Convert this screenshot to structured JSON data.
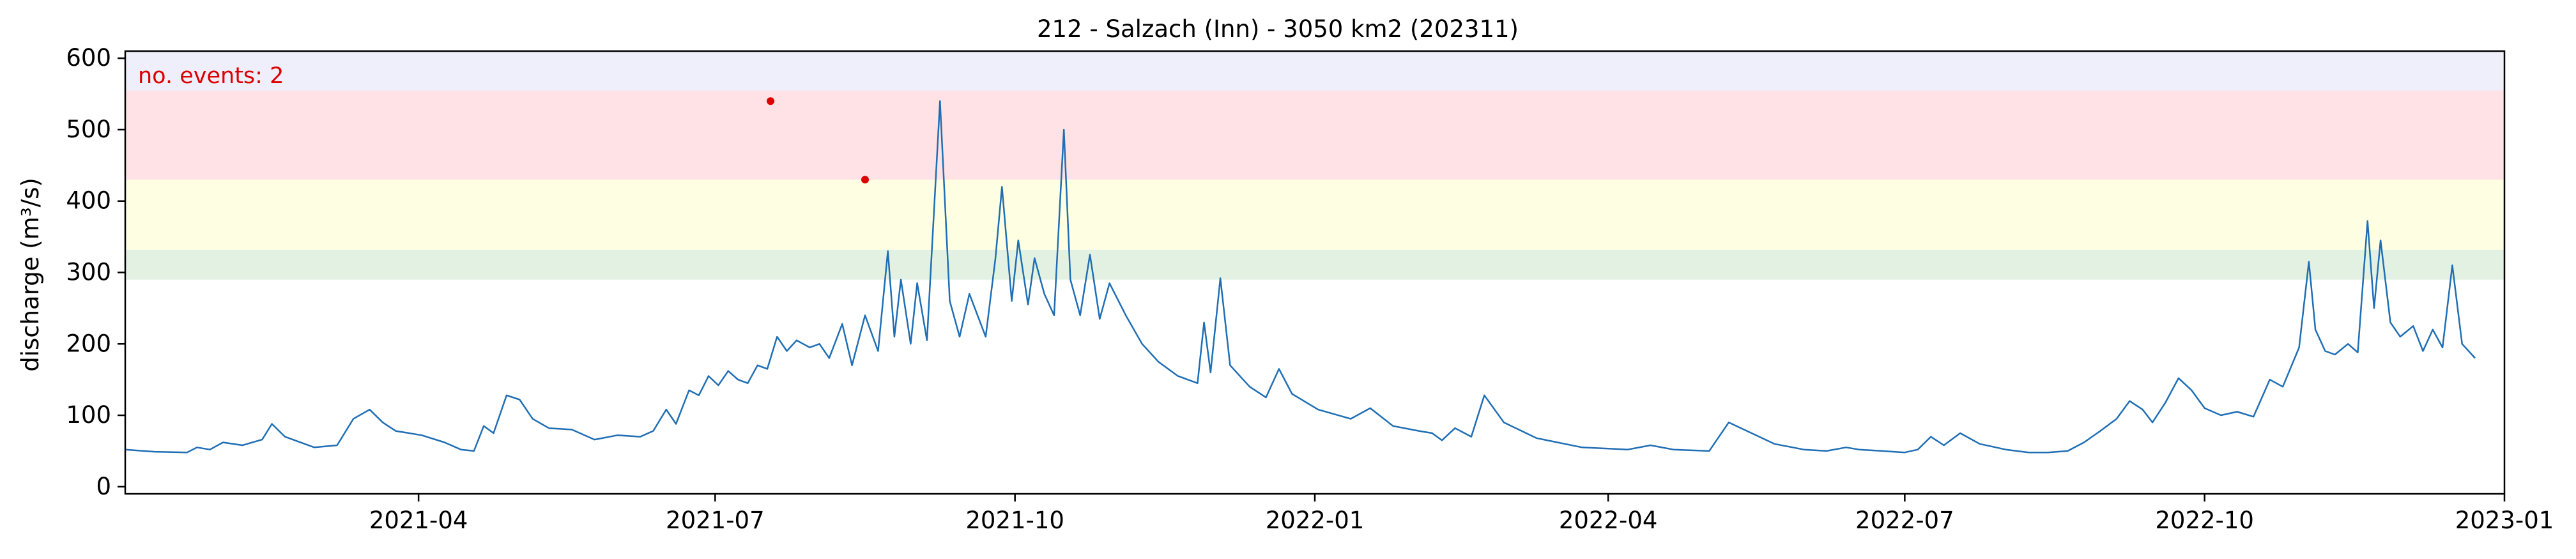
{
  "chart_data": {
    "type": "line",
    "title": "212 - Salzach (Inn) - 3050 km2 (202311)",
    "xlabel": "",
    "ylabel": "discharge (m³/s)",
    "xlim": [
      "2021-01-01",
      "2023-01-01"
    ],
    "ylim": [
      -10,
      610
    ],
    "x_ticks": [
      "2021-04",
      "2021-07",
      "2021-10",
      "2022-01",
      "2022-04",
      "2022-07",
      "2022-10",
      "2023-01"
    ],
    "y_ticks": [
      0,
      100,
      200,
      300,
      400,
      500,
      600
    ],
    "annotation": "no. events: 2",
    "annotation_color": "#dd0000",
    "line_color": "#1f6eb4",
    "event_marker_color": "#dd0000",
    "threshold_bands": [
      {
        "from": 290,
        "to": 332,
        "color": "#e3f1e3"
      },
      {
        "from": 332,
        "to": 430,
        "color": "#fefee2"
      },
      {
        "from": 430,
        "to": 555,
        "color": "#fee2e5"
      },
      {
        "from": 555,
        "to": 610,
        "color": "#efeffb"
      }
    ],
    "events": [
      {
        "x": "2021-07-18",
        "y": 540
      },
      {
        "x": "2021-08-16",
        "y": 430
      }
    ],
    "series": [
      {
        "points": [
          [
            "2021-01-01",
            52
          ],
          [
            "2021-01-10",
            49
          ],
          [
            "2021-01-20",
            48
          ],
          [
            "2021-01-23",
            55
          ],
          [
            "2021-01-27",
            52
          ],
          [
            "2021-01-31",
            62
          ],
          [
            "2021-02-06",
            58
          ],
          [
            "2021-02-12",
            66
          ],
          [
            "2021-02-15",
            88
          ],
          [
            "2021-02-19",
            70
          ],
          [
            "2021-02-28",
            55
          ],
          [
            "2021-03-07",
            58
          ],
          [
            "2021-03-12",
            95
          ],
          [
            "2021-03-17",
            108
          ],
          [
            "2021-03-21",
            90
          ],
          [
            "2021-03-25",
            78
          ],
          [
            "2021-04-02",
            72
          ],
          [
            "2021-04-09",
            62
          ],
          [
            "2021-04-14",
            52
          ],
          [
            "2021-04-18",
            50
          ],
          [
            "2021-04-21",
            85
          ],
          [
            "2021-04-24",
            75
          ],
          [
            "2021-04-28",
            128
          ],
          [
            "2021-05-02",
            122
          ],
          [
            "2021-05-06",
            95
          ],
          [
            "2021-05-11",
            82
          ],
          [
            "2021-05-18",
            80
          ],
          [
            "2021-05-25",
            66
          ],
          [
            "2021-06-01",
            72
          ],
          [
            "2021-06-08",
            70
          ],
          [
            "2021-06-12",
            78
          ],
          [
            "2021-06-16",
            108
          ],
          [
            "2021-06-19",
            88
          ],
          [
            "2021-06-23",
            135
          ],
          [
            "2021-06-26",
            128
          ],
          [
            "2021-06-29",
            155
          ],
          [
            "2021-07-02",
            142
          ],
          [
            "2021-07-05",
            162
          ],
          [
            "2021-07-08",
            150
          ],
          [
            "2021-07-11",
            145
          ],
          [
            "2021-07-14",
            170
          ],
          [
            "2021-07-17",
            165
          ],
          [
            "2021-07-20",
            210
          ],
          [
            "2021-07-23",
            190
          ],
          [
            "2021-07-26",
            205
          ],
          [
            "2021-07-30",
            195
          ],
          [
            "2021-08-02",
            200
          ],
          [
            "2021-08-05",
            180
          ],
          [
            "2021-08-09",
            228
          ],
          [
            "2021-08-12",
            170
          ],
          [
            "2021-08-16",
            240
          ],
          [
            "2021-08-20",
            190
          ],
          [
            "2021-08-23",
            330
          ],
          [
            "2021-08-25",
            210
          ],
          [
            "2021-08-27",
            290
          ],
          [
            "2021-08-30",
            200
          ],
          [
            "2021-09-01",
            285
          ],
          [
            "2021-09-04",
            205
          ],
          [
            "2021-09-08",
            540
          ],
          [
            "2021-09-11",
            260
          ],
          [
            "2021-09-14",
            210
          ],
          [
            "2021-09-17",
            270
          ],
          [
            "2021-09-22",
            210
          ],
          [
            "2021-09-25",
            320
          ],
          [
            "2021-09-27",
            420
          ],
          [
            "2021-09-30",
            260
          ],
          [
            "2021-10-02",
            345
          ],
          [
            "2021-10-05",
            255
          ],
          [
            "2021-10-07",
            320
          ],
          [
            "2021-10-10",
            270
          ],
          [
            "2021-10-13",
            240
          ],
          [
            "2021-10-16",
            500
          ],
          [
            "2021-10-18",
            290
          ],
          [
            "2021-10-21",
            240
          ],
          [
            "2021-10-24",
            325
          ],
          [
            "2021-10-27",
            235
          ],
          [
            "2021-10-30",
            285
          ],
          [
            "2021-11-04",
            240
          ],
          [
            "2021-11-09",
            200
          ],
          [
            "2021-11-14",
            175
          ],
          [
            "2021-11-20",
            155
          ],
          [
            "2021-11-26",
            145
          ],
          [
            "2021-11-28",
            230
          ],
          [
            "2021-11-30",
            160
          ],
          [
            "2021-12-03",
            292
          ],
          [
            "2021-12-06",
            170
          ],
          [
            "2021-12-12",
            140
          ],
          [
            "2021-12-17",
            125
          ],
          [
            "2021-12-21",
            165
          ],
          [
            "2021-12-25",
            130
          ],
          [
            "2022-01-02",
            108
          ],
          [
            "2022-01-12",
            95
          ],
          [
            "2022-01-18",
            110
          ],
          [
            "2022-01-25",
            85
          ],
          [
            "2022-02-02",
            78
          ],
          [
            "2022-02-06",
            75
          ],
          [
            "2022-02-09",
            65
          ],
          [
            "2022-02-13",
            82
          ],
          [
            "2022-02-18",
            70
          ],
          [
            "2022-02-22",
            128
          ],
          [
            "2022-02-28",
            90
          ],
          [
            "2022-03-10",
            68
          ],
          [
            "2022-03-24",
            55
          ],
          [
            "2022-04-07",
            52
          ],
          [
            "2022-04-14",
            58
          ],
          [
            "2022-04-21",
            52
          ],
          [
            "2022-05-02",
            50
          ],
          [
            "2022-05-08",
            90
          ],
          [
            "2022-05-15",
            75
          ],
          [
            "2022-05-22",
            60
          ],
          [
            "2022-05-31",
            52
          ],
          [
            "2022-06-07",
            50
          ],
          [
            "2022-06-13",
            55
          ],
          [
            "2022-06-17",
            52
          ],
          [
            "2022-06-24",
            50
          ],
          [
            "2022-07-01",
            48
          ],
          [
            "2022-07-05",
            52
          ],
          [
            "2022-07-09",
            70
          ],
          [
            "2022-07-13",
            58
          ],
          [
            "2022-07-18",
            75
          ],
          [
            "2022-07-24",
            60
          ],
          [
            "2022-08-01",
            52
          ],
          [
            "2022-08-08",
            48
          ],
          [
            "2022-08-14",
            48
          ],
          [
            "2022-08-20",
            50
          ],
          [
            "2022-08-25",
            62
          ],
          [
            "2022-08-30",
            78
          ],
          [
            "2022-09-04",
            95
          ],
          [
            "2022-09-08",
            120
          ],
          [
            "2022-09-12",
            108
          ],
          [
            "2022-09-15",
            90
          ],
          [
            "2022-09-19",
            118
          ],
          [
            "2022-09-23",
            152
          ],
          [
            "2022-09-27",
            135
          ],
          [
            "2022-10-01",
            110
          ],
          [
            "2022-10-06",
            100
          ],
          [
            "2022-10-11",
            105
          ],
          [
            "2022-10-16",
            98
          ],
          [
            "2022-10-21",
            150
          ],
          [
            "2022-10-25",
            140
          ],
          [
            "2022-10-30",
            195
          ],
          [
            "2022-11-02",
            315
          ],
          [
            "2022-11-04",
            220
          ],
          [
            "2022-11-07",
            190
          ],
          [
            "2022-11-10",
            185
          ],
          [
            "2022-11-14",
            200
          ],
          [
            "2022-11-17",
            188
          ],
          [
            "2022-11-20",
            372
          ],
          [
            "2022-11-22",
            250
          ],
          [
            "2022-11-24",
            345
          ],
          [
            "2022-11-27",
            230
          ],
          [
            "2022-11-30",
            210
          ],
          [
            "2022-12-04",
            225
          ],
          [
            "2022-12-07",
            190
          ],
          [
            "2022-12-10",
            220
          ],
          [
            "2022-12-13",
            195
          ],
          [
            "2022-12-16",
            310
          ],
          [
            "2022-12-19",
            200
          ],
          [
            "2022-12-23",
            180
          ]
        ]
      }
    ]
  }
}
